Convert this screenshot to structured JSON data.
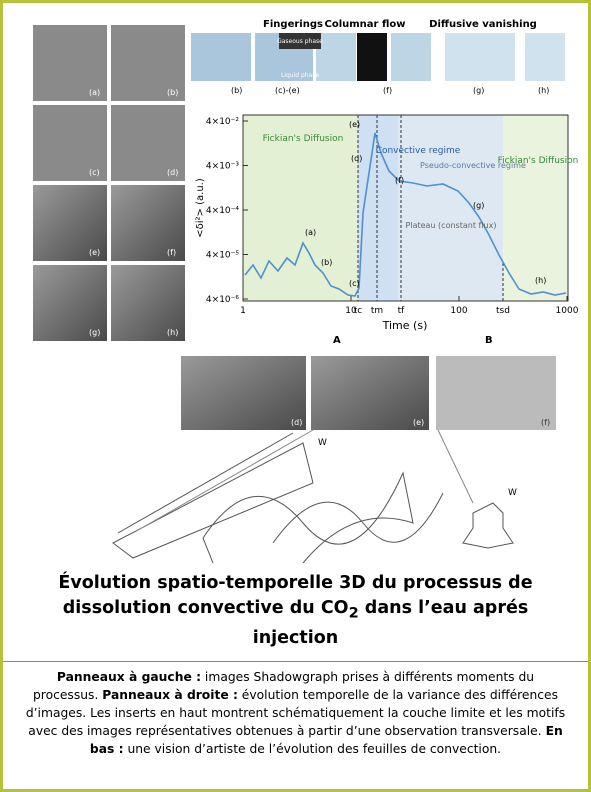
{
  "left_panels": {
    "labels": [
      "(a)",
      "(b)",
      "(c)",
      "(d)",
      "(e)",
      "(f)",
      "(g)",
      "(h)"
    ]
  },
  "insets": {
    "headers": [
      "Fingerings",
      "Columnar flow",
      "Diffusive vanishing"
    ],
    "labels": [
      "(b)",
      "(c)-(e)",
      "(f)",
      "(g)",
      "(h)"
    ],
    "phase_labels": [
      "Gaseous phase",
      "Liquid phase"
    ]
  },
  "plot": {
    "y_label": "<δi²> (a.u.)",
    "x_label": "Time (s)",
    "yticks": [
      "4×10⁻²",
      "4×10⁻³",
      "4×10⁻⁴",
      "4×10⁻⁵",
      "4×10⁻⁶"
    ],
    "xticks": [
      "1",
      "10",
      "100",
      "1000"
    ],
    "regions": [
      "Fickian's Diffusion",
      "Convective regime",
      "Pseudo-convective regime",
      "Plateau (constant flux)",
      "Fickian's Diffusion"
    ],
    "times": [
      "tc",
      "tm",
      "tf",
      "tsd"
    ],
    "points": [
      "(a)",
      "(b)",
      "(c)",
      "(d)",
      "(e)",
      "(f)",
      "(g)",
      "(h)"
    ],
    "sections": [
      "A",
      "B"
    ]
  },
  "bottom": {
    "labels": [
      "(d)",
      "(e)",
      "(f)"
    ],
    "w_labels": [
      "W",
      "W"
    ]
  },
  "caption": {
    "title_before": "Évolution spatio-temporelle 3D du processus de dissolution convective du CO",
    "title_sub": "2",
    "title_after": " dans l’eau aprés injection",
    "paragraph": [
      {
        "bold": "Panneaux à gauche :",
        "text": " images Shadowgraph prises à différents moments du processus. "
      },
      {
        "bold": "Panneaux à droite :",
        "text": " évolution temporelle de la variance des différences d’images. Les inserts en haut montrent schématiquement la couche limite et les motifs avec des images représentatives obtenues à partir d’une observation transversale. "
      },
      {
        "bold": "En bas :",
        "text": " une vision d’artiste de l’évolution des feuilles de convection."
      }
    ]
  }
}
